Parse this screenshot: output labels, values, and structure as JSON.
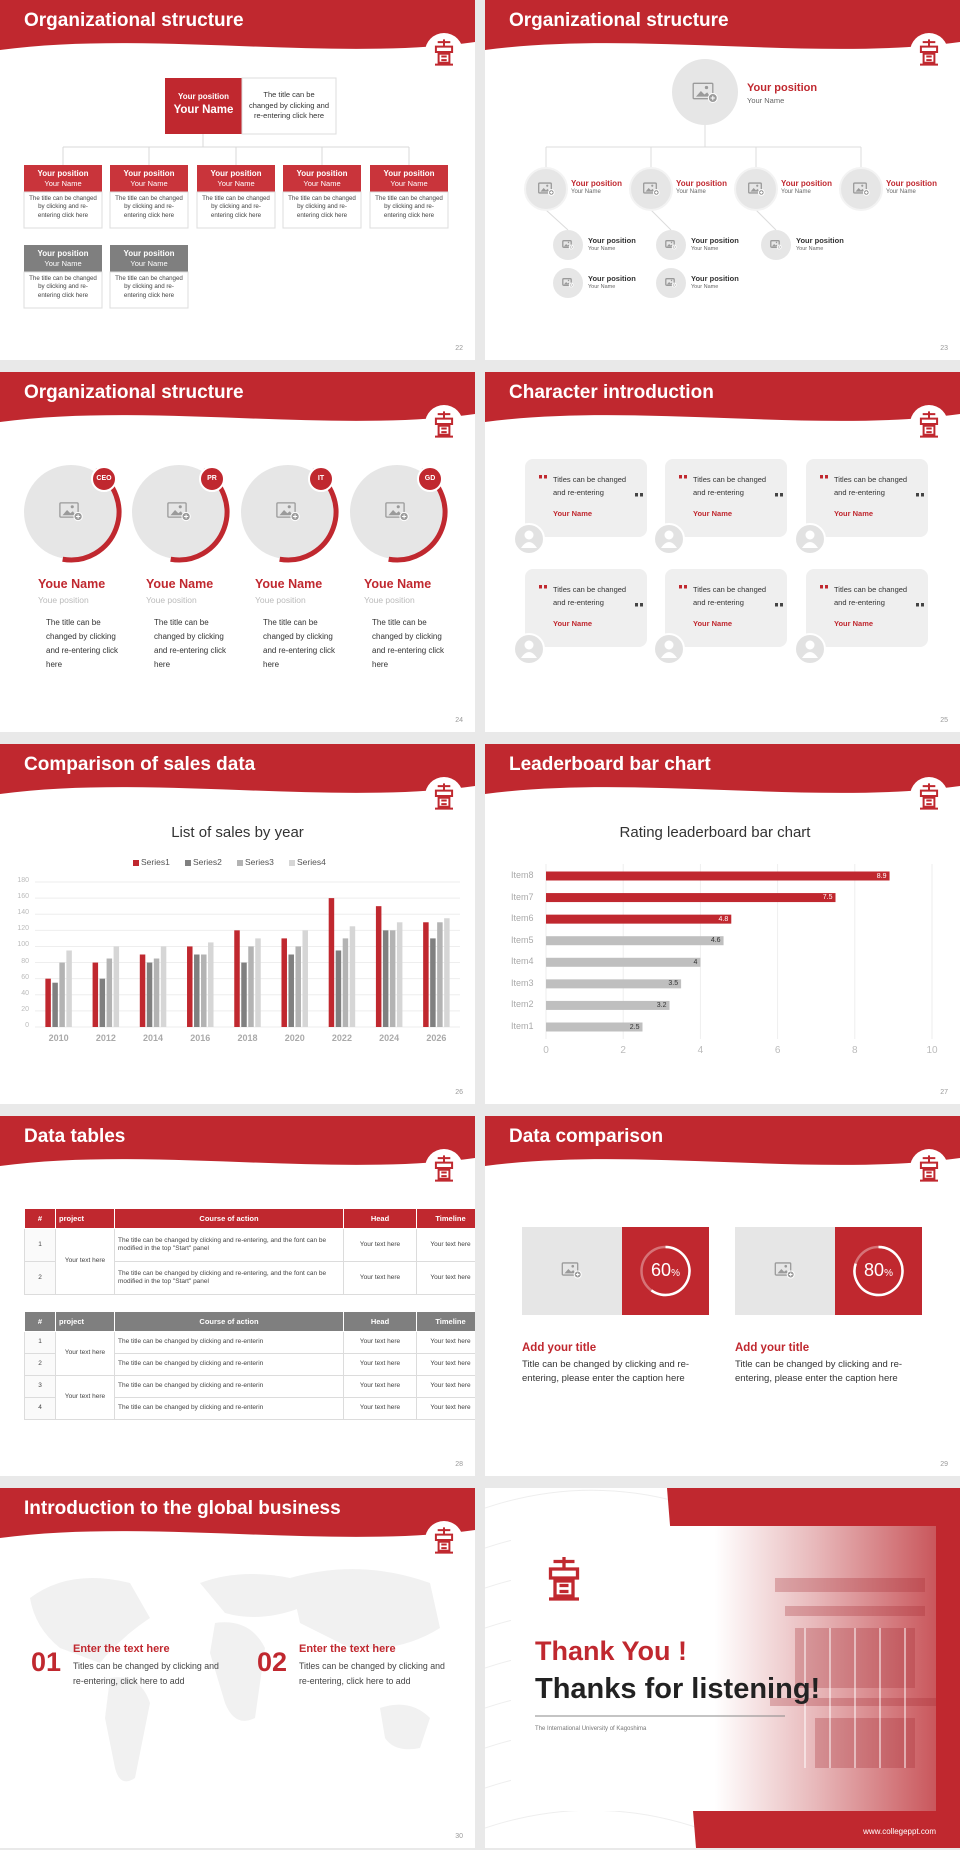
{
  "slides": [
    {
      "title": "Organizational structure",
      "page": "22",
      "head": {
        "position": "Your position",
        "name": "Your Name",
        "desc": "The title can be changed by clicking and re-entering click here"
      },
      "members": [
        {
          "position": "Your position",
          "name": "Your Name",
          "desc": "The title can be changed by clicking and re-entering click here"
        },
        {
          "position": "Your position",
          "name": "Your Name",
          "desc": "The title can be changed by clicking and re-entering click here"
        },
        {
          "position": "Your position",
          "name": "Your Name",
          "desc": "The title can be changed by clicking and re-entering click here"
        },
        {
          "position": "Your position",
          "name": "Your Name",
          "desc": "The title can be changed by clicking and re-entering click here"
        },
        {
          "position": "Your position",
          "name": "Your Name",
          "desc": "The title can be changed by clicking and re-entering click here"
        },
        {
          "position": "Your position",
          "name": "Your Name",
          "desc": "The title can be changed by clicking and re-entering click here"
        },
        {
          "position": "Your position",
          "name": "Your Name",
          "desc": "The title can be changed by clicking and re-entering click here"
        }
      ]
    },
    {
      "title": "Organizational structure",
      "page": "23",
      "head": {
        "position": "Your position",
        "name": "Your Name"
      },
      "level1": [
        {
          "position": "Your position",
          "name": "Your Name"
        },
        {
          "position": "Your position",
          "name": "Your Name"
        },
        {
          "position": "Your position",
          "name": "Your Name"
        },
        {
          "position": "Your position",
          "name": "Your Name"
        }
      ],
      "level2": [
        {
          "position": "Your position",
          "name": "Your Name"
        },
        {
          "position": "Your position",
          "name": "Your Name"
        },
        {
          "position": "Your position",
          "name": "Your Name"
        },
        {
          "position": "Your position",
          "name": "Your Name"
        },
        {
          "position": "Your position",
          "name": "Your Name"
        }
      ]
    },
    {
      "title": "Organizational structure",
      "page": "24",
      "members": [
        {
          "tag": "CEO",
          "name": "Youe Name",
          "position": "Youe position",
          "desc": "The title can be changed by clicking and re-entering click here"
        },
        {
          "tag": "PR",
          "name": "Youe Name",
          "position": "Youe position",
          "desc": "The title can be changed by clicking and re-entering click here"
        },
        {
          "tag": "IT",
          "name": "Youe Name",
          "position": "Youe position",
          "desc": "The title can be changed by clicking and re-entering click here"
        },
        {
          "tag": "GD",
          "name": "Youe Name",
          "position": "Youe position",
          "desc": "The title can be changed by clicking and re-entering click here"
        }
      ]
    },
    {
      "title": "Character introduction",
      "page": "25",
      "cards": [
        {
          "text": "Titles can be changed and re-entering",
          "name": "Your Name"
        },
        {
          "text": "Titles can be changed and re-entering",
          "name": "Your Name"
        },
        {
          "text": "Titles can be changed and re-entering",
          "name": "Your Name"
        },
        {
          "text": "Titles can be changed and re-entering",
          "name": "Your Name"
        },
        {
          "text": "Titles can be changed and re-entering",
          "name": "Your Name"
        },
        {
          "text": "Titles can be changed and re-entering",
          "name": "Your Name"
        }
      ]
    },
    {
      "title": "Comparison of sales data",
      "page": "26",
      "chart": {
        "type": "bar",
        "title": "List of sales by year",
        "categories": [
          "2010",
          "2012",
          "2014",
          "2016",
          "2018",
          "2020",
          "2022",
          "2024",
          "2026"
        ],
        "series": [
          {
            "name": "Series1",
            "color": "#c0282f",
            "values": [
              60,
              80,
              90,
              100,
              120,
              110,
              160,
              150,
              130
            ]
          },
          {
            "name": "Series2",
            "color": "#808080",
            "values": [
              55,
              60,
              80,
              90,
              80,
              90,
              95,
              120,
              110
            ]
          },
          {
            "name": "Series3",
            "color": "#b3b3b3",
            "values": [
              80,
              85,
              85,
              90,
              100,
              100,
              110,
              120,
              130
            ]
          },
          {
            "name": "Series4",
            "color": "#d6d6d6",
            "values": [
              95,
              100,
              100,
              105,
              110,
              120,
              125,
              130,
              135
            ]
          }
        ],
        "ylim": [
          0,
          180
        ],
        "yticks": [
          0,
          20,
          40,
          60,
          80,
          100,
          120,
          140,
          160,
          180
        ],
        "grid": true,
        "legend": "top"
      }
    },
    {
      "title": "Leaderboard bar chart",
      "page": "27",
      "chart": {
        "type": "bar",
        "orientation": "horizontal",
        "title": "Rating leaderboard bar chart",
        "categories": [
          "Item1",
          "Item2",
          "Item3",
          "Item4",
          "Item5",
          "Item6",
          "Item7",
          "Item8"
        ],
        "values": [
          2.5,
          3.2,
          3.5,
          4,
          4.6,
          4.8,
          7.5,
          8.9
        ],
        "colors": [
          "#bfbfbf",
          "#bfbfbf",
          "#bfbfbf",
          "#bfbfbf",
          "#bfbfbf",
          "#c0282f",
          "#c0282f",
          "#c0282f"
        ],
        "xlim": [
          0,
          10
        ],
        "xticks": [
          0,
          2,
          4,
          6,
          8,
          10
        ],
        "grid": true
      }
    },
    {
      "title": "Data tables",
      "page": "28",
      "table1": {
        "header": [
          "#",
          "project",
          "Course of action",
          "Head",
          "Timeline"
        ],
        "groups": [
          {
            "project": "Your text here",
            "rows": [
              [
                "1",
                "The title can be changed by clicking and re-entering, and the font can be modified in the top \"Start\" panel",
                "Your text here",
                "Your text here"
              ],
              [
                "2",
                "The title can be changed by clicking and re-entering, and the font can be modified in the top \"Start\" panel",
                "Your text here",
                "Your text here"
              ]
            ]
          }
        ]
      },
      "table2": {
        "header": [
          "#",
          "project",
          "Course of action",
          "Head",
          "Timeline"
        ],
        "groups": [
          {
            "project": "Your text here",
            "rows": [
              [
                "1",
                "The title can be changed by clicking and re-enterin",
                "Your text here",
                "Your text here"
              ],
              [
                "2",
                "The title can be changed by clicking and re-enterin",
                "Your text here",
                "Your text here"
              ]
            ]
          },
          {
            "project": "Your text here",
            "rows": [
              [
                "3",
                "The title can be changed by clicking and re-enterin",
                "Your text here",
                "Your text here"
              ],
              [
                "4",
                "The title can be changed by clicking and re-enterin",
                "Your text here",
                "Your text here"
              ]
            ]
          }
        ]
      }
    },
    {
      "title": "Data comparison",
      "page": "29",
      "items": [
        {
          "value": 60,
          "unit": "%",
          "title": "Add your title",
          "desc": "Title can be changed by clicking and re-entering, please enter the caption here"
        },
        {
          "value": 80,
          "unit": "%",
          "title": "Add your title",
          "desc": "Title can be changed by clicking and re-entering, please enter the caption here"
        }
      ]
    },
    {
      "title": "Introduction to the global business",
      "page": "30",
      "items": [
        {
          "number": "01",
          "title": "Enter the text here",
          "desc": "Titles can be changed by clicking and re-entering, click here to add"
        },
        {
          "number": "02",
          "title": "Enter the text here",
          "desc": "Titles can be changed by clicking and re-entering, click here to add"
        }
      ]
    },
    {
      "thanks": "Thank You !",
      "subtitle": "Thanks for listening!",
      "university": "The International University of Kagoshima",
      "url": "www.collegeppt.com"
    }
  ]
}
